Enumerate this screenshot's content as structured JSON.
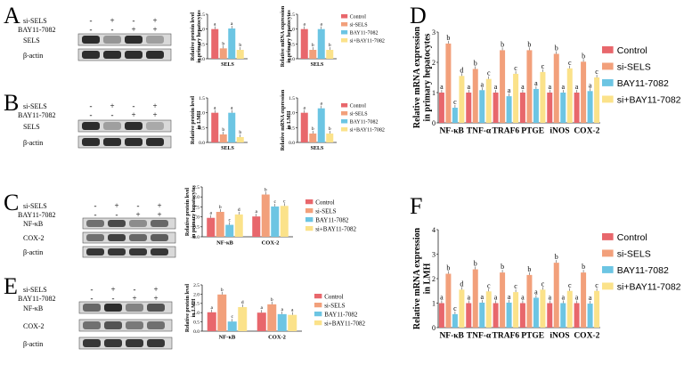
{
  "colors": {
    "control": "#E8676C",
    "si_sels": "#F2A07B",
    "bay": "#6CC5E3",
    "combo": "#FBE28A",
    "blot_bg": "#d9d9d9",
    "blot_band": "#1a1a1a",
    "axis": "#222222"
  },
  "panel_labels": {
    "A": "A",
    "B": "B",
    "C": "C",
    "D": "D",
    "E": "E",
    "F": "F"
  },
  "blots": [
    {
      "id": "A",
      "rows": [
        {
          "label": "si-SELS",
          "signs": [
            "-",
            "+",
            "-",
            "+"
          ]
        },
        {
          "label": "BAY11-7082",
          "signs": [
            "-",
            "-",
            "+",
            "+"
          ]
        }
      ],
      "bands": [
        {
          "label": "SELS",
          "intensity": [
            0.9,
            0.35,
            0.9,
            0.3
          ]
        },
        {
          "label": "β-actin",
          "intensity": [
            0.9,
            0.9,
            0.9,
            0.9
          ]
        }
      ]
    },
    {
      "id": "B",
      "rows": [
        {
          "label": "si-SELS",
          "signs": [
            "-",
            "+",
            "-",
            "+"
          ]
        },
        {
          "label": "BAY11-7082",
          "signs": [
            "-",
            "-",
            "+",
            "+"
          ]
        }
      ],
      "bands": [
        {
          "label": "SELS",
          "intensity": [
            0.9,
            0.3,
            0.9,
            0.25
          ]
        },
        {
          "label": "β-actin",
          "intensity": [
            0.9,
            0.9,
            0.9,
            0.9
          ]
        }
      ]
    },
    {
      "id": "C",
      "rows": [
        {
          "label": "si-SELS",
          "signs": [
            "-",
            "+",
            "-",
            "+"
          ]
        },
        {
          "label": "BAY11-7082",
          "signs": [
            "-",
            "-",
            "+",
            "+"
          ]
        }
      ],
      "bands": [
        {
          "label": "NF-κB",
          "intensity": [
            0.55,
            0.75,
            0.4,
            0.6
          ]
        },
        {
          "label": "COX-2",
          "intensity": [
            0.55,
            0.8,
            0.6,
            0.65
          ]
        },
        {
          "label": "β-actin",
          "intensity": [
            0.85,
            0.85,
            0.85,
            0.85
          ]
        }
      ]
    },
    {
      "id": "E",
      "rows": [
        {
          "label": "si-SELS",
          "signs": [
            "-",
            "+",
            "-",
            "+"
          ]
        },
        {
          "label": "BAY11-7082",
          "signs": [
            "-",
            "-",
            "+",
            "+"
          ]
        }
      ],
      "bands": [
        {
          "label": "NF-κB",
          "intensity": [
            0.6,
            0.9,
            0.45,
            0.7
          ]
        },
        {
          "label": "COX-2",
          "intensity": [
            0.55,
            0.7,
            0.5,
            0.55
          ]
        },
        {
          "label": "β-actin",
          "intensity": [
            0.85,
            0.85,
            0.85,
            0.85
          ]
        }
      ]
    }
  ],
  "chart_data": [
    {
      "id": "A1",
      "type": "bar",
      "ylabel": "Relative protein level in primary hepatocytes",
      "categories": [
        "SELS"
      ],
      "ylim": [
        0,
        1.5
      ],
      "yticks": [
        0,
        0.5,
        1.0,
        1.5
      ],
      "series": [
        {
          "name": "Control",
          "values": [
            1.0
          ],
          "letters": [
            "a"
          ]
        },
        {
          "name": "si-SELS",
          "values": [
            0.35
          ],
          "letters": [
            "b"
          ]
        },
        {
          "name": "BAY11-7082",
          "values": [
            1.02
          ],
          "letters": [
            "a"
          ]
        },
        {
          "name": "si+BAY11-7082",
          "values": [
            0.3
          ],
          "letters": [
            "b"
          ]
        }
      ]
    },
    {
      "id": "A2",
      "type": "bar",
      "ylabel": "Relative mRNA expression in primary hepatocytes",
      "categories": [
        "SELS"
      ],
      "ylim": [
        0,
        1.5
      ],
      "yticks": [
        0,
        0.5,
        1.0,
        1.5
      ],
      "series": [
        {
          "name": "Control",
          "values": [
            1.0
          ],
          "letters": [
            "a"
          ]
        },
        {
          "name": "si-SELS",
          "values": [
            0.3
          ],
          "letters": [
            "b"
          ]
        },
        {
          "name": "BAY11-7082",
          "values": [
            1.0
          ],
          "letters": [
            "a"
          ]
        },
        {
          "name": "si+BAY11-7082",
          "values": [
            0.3
          ],
          "letters": [
            "b"
          ]
        }
      ],
      "legend": [
        "Control",
        "si-SELS",
        "BAY11-7082",
        "si+BAY11-7082"
      ]
    },
    {
      "id": "B1",
      "type": "bar",
      "ylabel": "Relative protein level in LMH",
      "categories": [
        "SELS"
      ],
      "ylim": [
        0,
        1.5
      ],
      "yticks": [
        0,
        0.5,
        1.0,
        1.5
      ],
      "series": [
        {
          "name": "Control",
          "values": [
            1.0
          ],
          "letters": [
            "a"
          ]
        },
        {
          "name": "si-SELS",
          "values": [
            0.27
          ],
          "letters": [
            "b"
          ]
        },
        {
          "name": "BAY11-7082",
          "values": [
            1.0
          ],
          "letters": [
            "a"
          ]
        },
        {
          "name": "si+BAY11-7082",
          "values": [
            0.18
          ],
          "letters": [
            "b"
          ]
        }
      ]
    },
    {
      "id": "B2",
      "type": "bar",
      "ylabel": "Relative mRNA expression in LMH",
      "categories": [
        "SELS"
      ],
      "ylim": [
        0,
        1.5
      ],
      "yticks": [
        0,
        0.5,
        1.0,
        1.5
      ],
      "series": [
        {
          "name": "Control",
          "values": [
            1.0
          ],
          "letters": [
            "a"
          ]
        },
        {
          "name": "si-SELS",
          "values": [
            0.3
          ],
          "letters": [
            "b"
          ]
        },
        {
          "name": "BAY11-7082",
          "values": [
            1.15
          ],
          "letters": [
            "a"
          ]
        },
        {
          "name": "si+BAY11-7082",
          "values": [
            0.3
          ],
          "letters": [
            "b"
          ]
        }
      ],
      "legend": [
        "Control",
        "si-SELS",
        "BAY11-7082",
        "si+BAY11-7082"
      ]
    },
    {
      "id": "C",
      "type": "bar",
      "ylabel": "Relative protein level in primary hepatocytes",
      "categories": [
        "NF-κB",
        "COX-2"
      ],
      "ylim": [
        0,
        2.5
      ],
      "yticks": [
        0,
        0.5,
        1.0,
        1.5,
        2.0,
        2.5
      ],
      "series": [
        {
          "name": "Control",
          "values": [
            0.95,
            1.02
          ],
          "letters": [
            "a",
            "a"
          ]
        },
        {
          "name": "si-SELS",
          "values": [
            1.25,
            2.12
          ],
          "letters": [
            "b",
            "b"
          ]
        },
        {
          "name": "BAY11-7082",
          "values": [
            0.6,
            1.52
          ],
          "letters": [
            "c",
            "c"
          ]
        },
        {
          "name": "si+BAY11-7082",
          "values": [
            1.12,
            1.55
          ],
          "letters": [
            "d",
            "c"
          ]
        }
      ],
      "legend": [
        "Control",
        "si-SELS",
        "BAY11-7082",
        "si+BAY11-7082"
      ]
    },
    {
      "id": "E",
      "type": "bar",
      "ylabel": "Relative protein level in LMH",
      "categories": [
        "NF-κB",
        "COX-2"
      ],
      "ylim": [
        0,
        2.5
      ],
      "yticks": [
        0,
        0.5,
        1.0,
        1.5,
        2.0,
        2.5
      ],
      "series": [
        {
          "name": "Control",
          "values": [
            1.02,
            1.0
          ],
          "letters": [
            "a",
            "a"
          ]
        },
        {
          "name": "si-SELS",
          "values": [
            1.98,
            1.45
          ],
          "letters": [
            "b",
            "b"
          ]
        },
        {
          "name": "BAY11-7082",
          "values": [
            0.52,
            0.92
          ],
          "letters": [
            "c",
            "a"
          ]
        },
        {
          "name": "si+BAY11-7082",
          "values": [
            1.3,
            0.88
          ],
          "letters": [
            "d",
            "a"
          ]
        }
      ],
      "legend": [
        "Control",
        "si-SELS",
        "BAY11-7082",
        "si+BAY11-7082"
      ]
    },
    {
      "id": "D",
      "type": "bar",
      "ylabel": "Relative mRNA expression in primary hepatocytes",
      "categories": [
        "NF-κB",
        "TNF-α",
        "TRAF6",
        "PTGE",
        "iNOS",
        "COX-2"
      ],
      "ylim": [
        0,
        3
      ],
      "yticks": [
        0,
        1,
        2,
        3
      ],
      "series": [
        {
          "name": "Control",
          "values": [
            1.0,
            1.0,
            1.0,
            1.0,
            1.0,
            1.0
          ],
          "letters": [
            "a",
            "a",
            "a",
            "a",
            "a",
            "a"
          ]
        },
        {
          "name": "si-SELS",
          "values": [
            2.62,
            1.78,
            2.4,
            2.4,
            2.28,
            2.02
          ],
          "letters": [
            "b",
            "b",
            "b",
            "b",
            "b",
            "b"
          ]
        },
        {
          "name": "BAY11-7082",
          "values": [
            0.5,
            1.08,
            0.88,
            1.12,
            1.0,
            1.05
          ],
          "letters": [
            "c",
            "a",
            "a",
            "a",
            "a",
            "a"
          ]
        },
        {
          "name": "si+BAY11-7082",
          "values": [
            1.55,
            1.45,
            1.62,
            1.68,
            1.8,
            1.5
          ],
          "letters": [
            "d",
            "c",
            "c",
            "c",
            "c",
            "c"
          ]
        }
      ],
      "legend": [
        "Control",
        "si-SELS",
        "BAY11-7082",
        "si+BAY11-7082"
      ]
    },
    {
      "id": "F",
      "type": "bar",
      "ylabel": "Relative mRNA expression in LMH",
      "categories": [
        "NF-κB",
        "TNF-α",
        "TRAF6",
        "PTGE",
        "iNOS",
        "COX-2"
      ],
      "ylim": [
        0,
        4
      ],
      "yticks": [
        0,
        1,
        2,
        3,
        4
      ],
      "series": [
        {
          "name": "Control",
          "values": [
            1.0,
            1.0,
            1.0,
            1.0,
            1.0,
            1.0
          ],
          "letters": [
            "a",
            "a",
            "a",
            "a",
            "a",
            "a"
          ]
        },
        {
          "name": "si-SELS",
          "values": [
            2.2,
            2.38,
            2.25,
            2.15,
            2.65,
            2.25
          ],
          "letters": [
            "b",
            "b",
            "b",
            "b",
            "b",
            "b"
          ]
        },
        {
          "name": "BAY11-7082",
          "values": [
            0.55,
            1.02,
            1.02,
            1.22,
            1.0,
            0.98
          ],
          "letters": [
            "c",
            "a",
            "a",
            "a",
            "a",
            "a"
          ]
        },
        {
          "name": "si+BAY11-7082",
          "values": [
            1.55,
            1.48,
            1.45,
            1.55,
            1.5,
            1.5
          ],
          "letters": [
            "d",
            "c",
            "c",
            "c",
            "c",
            "c"
          ]
        }
      ],
      "legend": [
        "Control",
        "si-SELS",
        "BAY11-7082",
        "si+BAY11-7082"
      ]
    }
  ]
}
